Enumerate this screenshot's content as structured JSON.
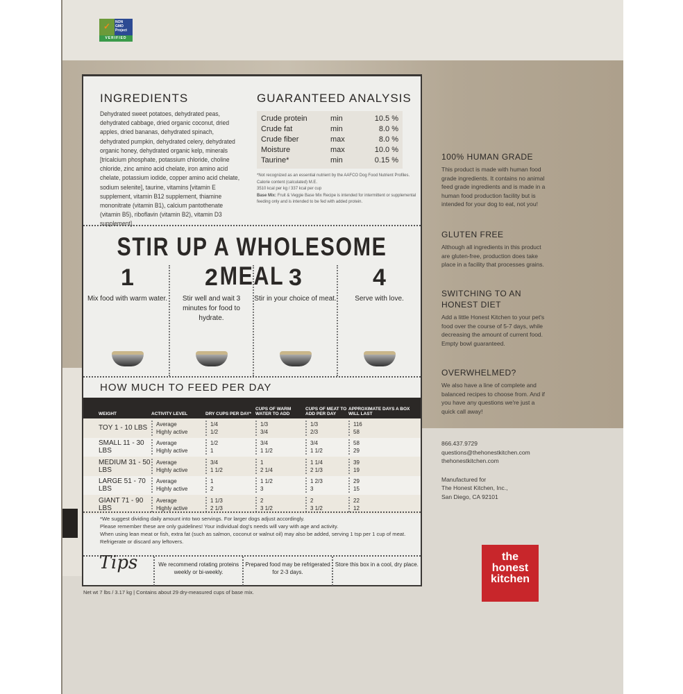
{
  "badge": {
    "line1": "NON",
    "line2": "GMO",
    "line3": "Project",
    "verified": "VERIFIED"
  },
  "ingredients": {
    "title": "INGREDIENTS",
    "text": "Dehydrated sweet potatoes, dehydrated peas, dehydrated cabbage, dried organic coconut, dried apples, dried bananas, dehydrated spinach, dehydrated pumpkin, dehydrated celery, dehydrated organic honey, dehydrated organic kelp, minerals [tricalcium phosphate, potassium chloride, choline chloride, zinc amino acid chelate, iron amino acid chelate, potassium iodide, copper amino acid chelate, sodium selenite], taurine, vitamins [vitamin E supplement, vitamin B12 supplement, thiamine mononitrate (vitamin B1), calcium pantothenate (vitamin B5), riboflavin (vitamin B2), vitamin D3 supplement]."
  },
  "analysis": {
    "title": "GUARANTEED ANALYSIS",
    "rows": [
      {
        "name": "Crude protein",
        "type": "min",
        "value": "10.5 %"
      },
      {
        "name": "Crude fat",
        "type": "min",
        "value": "8.0 %"
      },
      {
        "name": "Crude fiber",
        "type": "max",
        "value": "8.0 %"
      },
      {
        "name": "Moisture",
        "type": "max",
        "value": "10.0 %"
      },
      {
        "name": "Taurine*",
        "type": "min",
        "value": "0.15 %"
      }
    ],
    "note1": "*Not recognized as an essential nutrient by the AAFCO Dog Food Nutrient Profiles.",
    "note2": "Calorie content (calculated) M.E.",
    "note3": "3510 kcal per kg / 337 kcal per cup",
    "note4_label": "Base Mix:",
    "note4": "Fruit & Veggie Base Mix Recipe is intended for intermittent or supplemental feeding only and is intended to be fed with added protein."
  },
  "stir": {
    "title": "STIR UP A WHOLESOME MEAL",
    "steps": [
      {
        "num": "1",
        "desc": "Mix food with warm water."
      },
      {
        "num": "2",
        "desc": "Stir well and wait 3 minutes for food to hydrate."
      },
      {
        "num": "3",
        "desc": "Stir in your choice of meat."
      },
      {
        "num": "4",
        "desc": "Serve with love."
      }
    ]
  },
  "feeding": {
    "title": "HOW MUCH TO FEED PER DAY",
    "headers": [
      "WEIGHT",
      "ACTIVITY LEVEL",
      "DRY CUPS PER DAY*",
      "CUPS OF WARM WATER TO ADD",
      "CUPS OF MEAT TO ADD PER DAY",
      "APPROXIMATE DAYS A BOX WILL LAST"
    ],
    "levels": [
      "Average",
      "Highly active"
    ],
    "rows": [
      {
        "weight": "TOY 1 - 10 LBS",
        "dry": [
          "1/4",
          "1/2"
        ],
        "water": [
          "1/3",
          "3/4"
        ],
        "meat": [
          "1/3",
          "2/3"
        ],
        "days": [
          "116",
          "58"
        ]
      },
      {
        "weight": "SMALL 11 - 30 LBS",
        "dry": [
          "1/2",
          "1"
        ],
        "water": [
          "3/4",
          "1 1/2"
        ],
        "meat": [
          "3/4",
          "1 1/2"
        ],
        "days": [
          "58",
          "29"
        ]
      },
      {
        "weight": "MEDIUM 31 - 50 LBS",
        "dry": [
          "3/4",
          "1 1/2"
        ],
        "water": [
          "1",
          "2 1/4"
        ],
        "meat": [
          "1 1/4",
          "2 1/3"
        ],
        "days": [
          "39",
          "19"
        ]
      },
      {
        "weight": "LARGE 51 - 70 LBS",
        "dry": [
          "1",
          "2"
        ],
        "water": [
          "1 1/2",
          "3"
        ],
        "meat": [
          "1 2/3",
          "3"
        ],
        "days": [
          "29",
          "15"
        ]
      },
      {
        "weight": "GIANT 71 - 90 LBS",
        "dry": [
          "1 1/3",
          "2 1/3"
        ],
        "water": [
          "2",
          "3 1/2"
        ],
        "meat": [
          "2",
          "3 1/2"
        ],
        "days": [
          "22",
          "12"
        ]
      }
    ],
    "notes": [
      "*We suggest dividing daily amount into two servings. For larger dogs adjust accordingly.",
      "Please remember these are only guidelines! Your individual dog's needs will vary with age and activity.",
      "When using lean meat or fish, extra fat (such as salmon, coconut or walnut oil) may also be added, serving 1 tsp per 1 cup of meat.",
      "Refrigerate or discard any leftovers."
    ]
  },
  "tips": {
    "title": "Tips",
    "items": [
      "We recommend rotating proteins weekly or bi-weekly.",
      "Prepared food may be refrigerated for 2-3 days.",
      "Store this box in a cool, dry place."
    ]
  },
  "netwt": "Net wt 7 lbs / 3.17 kg  |  Contains about 29 dry-measured cups of base mix.",
  "side": [
    {
      "title": "100% HUMAN GRADE",
      "text": "This product is made with human food grade ingredients. It contains no animal feed grade ingredients and is made in a human food production facility but is intended for your dog to eat, not you!"
    },
    {
      "title": "GLUTEN FREE",
      "text": "Although all ingredients in this product are gluten-free, production does take place in a facility that processes grains."
    },
    {
      "title": "SWITCHING TO AN HONEST DIET",
      "text": "Add a little Honest Kitchen to your pet's food over the course of 5-7 days, while decreasing the amount of current food. Empty bowl guaranteed."
    },
    {
      "title": "OVERWHELMED?",
      "text": "We also have a line of complete and balanced recipes to choose from. And if you have any questions we're just a quick call away!"
    }
  ],
  "contact": {
    "phone": "866.437.9729",
    "email": "questions@thehonestkitchen.com",
    "web": "thehonestkitchen.com",
    "mfg1": "Manufactured for",
    "mfg2": "The Honest Kitchen, Inc.,",
    "mfg3": "San Diego, CA 92101"
  },
  "logo": {
    "line1": "the",
    "line2": "honest",
    "line3": "kitchen",
    "color": "#c8262b"
  }
}
